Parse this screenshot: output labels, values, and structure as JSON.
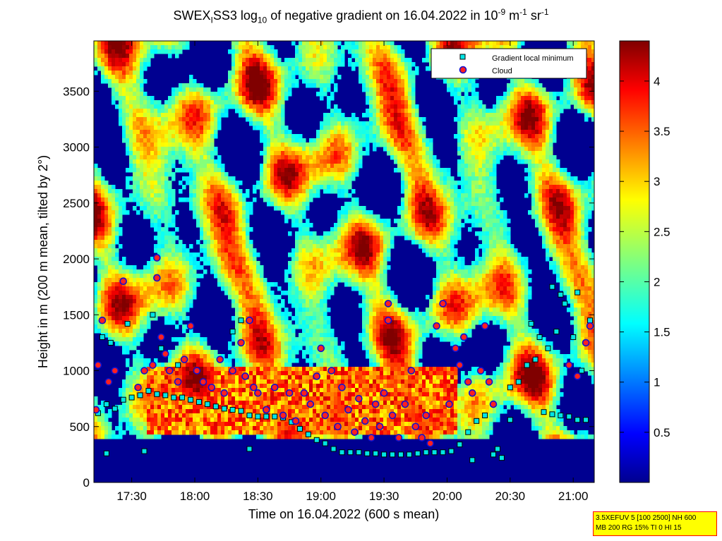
{
  "title": {
    "prefix": "SWEX",
    "prefix_sub": "I",
    "middle": "SS3 log",
    "log_sub": "10",
    "text": " of negative gradient on 16.04.2022 in 10",
    "exp1": "-9",
    "unit1": " m",
    "exp2": "-1",
    "unit2": " sr",
    "exp3": "-1"
  },
  "settings_box": {
    "line1": "3.5XEFUV 5 [100 2500] NH 600",
    "line2": "MB 200 RG 15% TI 0 HI 15"
  },
  "colors": {
    "gradient_min_marker": "#00e5e5",
    "cloud_marker_fill": "#ff2020",
    "cloud_marker_edge": "#1010d0",
    "background_low": "#000090"
  },
  "chart_data": {
    "type": "heatmap",
    "xlabel": "Time on 16.04.2022 (600 s mean)",
    "ylabel": "Height in m (200 m mean, tilted by 2°)",
    "x_range": [
      "17:12",
      "21:10"
    ],
    "ylim": [
      0,
      3950
    ],
    "x_ticks": [
      "17:30",
      "18:00",
      "18:30",
      "19:00",
      "19:30",
      "20:00",
      "20:30",
      "21:00"
    ],
    "y_ticks": [
      0,
      500,
      1000,
      1500,
      2000,
      2500,
      3000,
      3500
    ],
    "colorbar": {
      "range": [
        0,
        4.4
      ],
      "ticks": [
        0.5,
        1,
        1.5,
        2,
        2.5,
        3,
        3.5,
        4
      ],
      "colormap": "jet"
    },
    "legend": {
      "placement": "top-right",
      "entries": [
        "Gradient local minimum",
        "Cloud"
      ]
    },
    "series": [
      {
        "name": "Gradient local minimum",
        "points": [
          [
            "17:14",
            620
          ],
          [
            "17:18",
            700
          ],
          [
            "17:22",
            660
          ],
          [
            "17:26",
            740
          ],
          [
            "17:30",
            760
          ],
          [
            "17:34",
            780
          ],
          [
            "17:38",
            820
          ],
          [
            "17:42",
            790
          ],
          [
            "17:46",
            780
          ],
          [
            "17:50",
            760
          ],
          [
            "17:54",
            760
          ],
          [
            "17:58",
            740
          ],
          [
            "18:02",
            720
          ],
          [
            "18:06",
            700
          ],
          [
            "18:10",
            680
          ],
          [
            "18:14",
            660
          ],
          [
            "18:18",
            650
          ],
          [
            "18:22",
            640
          ],
          [
            "18:26",
            600
          ],
          [
            "18:30",
            590
          ],
          [
            "18:34",
            590
          ],
          [
            "18:38",
            590
          ],
          [
            "18:42",
            580
          ],
          [
            "18:46",
            540
          ],
          [
            "18:50",
            480
          ],
          [
            "18:54",
            430
          ],
          [
            "18:58",
            380
          ],
          [
            "19:02",
            350
          ],
          [
            "19:06",
            300
          ],
          [
            "19:10",
            270
          ],
          [
            "19:14",
            270
          ],
          [
            "19:18",
            270
          ],
          [
            "19:22",
            260
          ],
          [
            "19:26",
            260
          ],
          [
            "19:30",
            250
          ],
          [
            "19:34",
            250
          ],
          [
            "19:38",
            250
          ],
          [
            "19:42",
            250
          ],
          [
            "19:46",
            260
          ],
          [
            "19:50",
            270
          ],
          [
            "19:54",
            270
          ],
          [
            "19:58",
            270
          ],
          [
            "20:02",
            280
          ],
          [
            "20:06",
            340
          ],
          [
            "20:10",
            450
          ],
          [
            "20:14",
            550
          ],
          [
            "20:18",
            600
          ],
          [
            "20:22",
            250
          ],
          [
            "20:26",
            220
          ],
          [
            "20:30",
            850
          ],
          [
            "20:34",
            900
          ],
          [
            "20:38",
            1050
          ],
          [
            "20:42",
            1100
          ],
          [
            "20:46",
            630
          ],
          [
            "20:50",
            610
          ],
          [
            "20:54",
            600
          ],
          [
            "20:58",
            590
          ],
          [
            "21:02",
            560
          ],
          [
            "21:06",
            560
          ],
          [
            "21:08",
            1450
          ],
          [
            "20:40",
            1420
          ],
          [
            "20:44",
            1300
          ],
          [
            "20:48",
            1200
          ],
          [
            "20:52",
            1350
          ],
          [
            "20:56",
            1600
          ],
          [
            "21:00",
            1300
          ],
          [
            "21:04",
            1000
          ],
          [
            "20:50",
            1750
          ],
          [
            "20:54",
            1680
          ],
          [
            "21:02",
            1700
          ],
          [
            "17:16",
            1300
          ],
          [
            "17:20",
            1250
          ],
          [
            "17:28",
            1420
          ],
          [
            "17:40",
            1500
          ],
          [
            "17:44",
            1200
          ],
          [
            "17:52",
            1050
          ],
          [
            "18:18",
            1350
          ],
          [
            "18:22",
            1450
          ],
          [
            "17:36",
            280
          ],
          [
            "18:26",
            300
          ],
          [
            "17:18",
            260
          ],
          [
            "20:12",
            200
          ],
          [
            "20:24",
            300
          ],
          [
            "20:30",
            560
          ]
        ]
      },
      {
        "name": "Cloud",
        "points": [
          [
            "17:13",
            650
          ],
          [
            "17:14",
            1050
          ],
          [
            "17:16",
            1450
          ],
          [
            "17:19",
            900
          ],
          [
            "17:22",
            1000
          ],
          [
            "17:26",
            1800
          ],
          [
            "17:33",
            850
          ],
          [
            "17:36",
            1000
          ],
          [
            "17:40",
            1050
          ],
          [
            "17:42",
            2010
          ],
          [
            "17:42",
            1830
          ],
          [
            "17:44",
            1300
          ],
          [
            "17:46",
            1150
          ],
          [
            "17:48",
            1000
          ],
          [
            "17:52",
            900
          ],
          [
            "17:55",
            1100
          ],
          [
            "17:58",
            1400
          ],
          [
            "18:01",
            1000
          ],
          [
            "18:04",
            900
          ],
          [
            "18:08",
            850
          ],
          [
            "18:12",
            1100
          ],
          [
            "18:14",
            800
          ],
          [
            "18:18",
            1000
          ],
          [
            "18:22",
            1250
          ],
          [
            "18:24",
            950
          ],
          [
            "18:26",
            1450
          ],
          [
            "18:28",
            850
          ],
          [
            "18:30",
            800
          ],
          [
            "18:34",
            650
          ],
          [
            "18:38",
            850
          ],
          [
            "18:42",
            600
          ],
          [
            "18:45",
            800
          ],
          [
            "18:48",
            550
          ],
          [
            "18:52",
            800
          ],
          [
            "18:55",
            700
          ],
          [
            "18:58",
            950
          ],
          [
            "19:00",
            1200
          ],
          [
            "19:02",
            600
          ],
          [
            "19:05",
            1000
          ],
          [
            "19:08",
            500
          ],
          [
            "19:10",
            850
          ],
          [
            "19:13",
            650
          ],
          [
            "19:16",
            450
          ],
          [
            "19:18",
            750
          ],
          [
            "19:21",
            550
          ],
          [
            "19:24",
            400
          ],
          [
            "19:26",
            700
          ],
          [
            "19:28",
            500
          ],
          [
            "19:30",
            800
          ],
          [
            "19:32",
            1450
          ],
          [
            "19:32",
            1600
          ],
          [
            "19:34",
            600
          ],
          [
            "19:37",
            400
          ],
          [
            "19:40",
            700
          ],
          [
            "19:43",
            1000
          ],
          [
            "19:45",
            500
          ],
          [
            "19:48",
            400
          ],
          [
            "19:50",
            600
          ],
          [
            "19:52",
            350
          ],
          [
            "19:55",
            1400
          ],
          [
            "19:58",
            1600
          ],
          [
            "20:01",
            700
          ],
          [
            "20:04",
            1200
          ],
          [
            "20:06",
            1050
          ],
          [
            "20:08",
            1300
          ],
          [
            "20:10",
            900
          ],
          [
            "20:12",
            800
          ],
          [
            "20:16",
            1000
          ],
          [
            "20:18",
            1400
          ],
          [
            "20:20",
            900
          ],
          [
            "20:22",
            700
          ],
          [
            "20:58",
            1050
          ],
          [
            "21:02",
            950
          ],
          [
            "21:06",
            1250
          ],
          [
            "21:08",
            1400
          ]
        ]
      }
    ]
  }
}
